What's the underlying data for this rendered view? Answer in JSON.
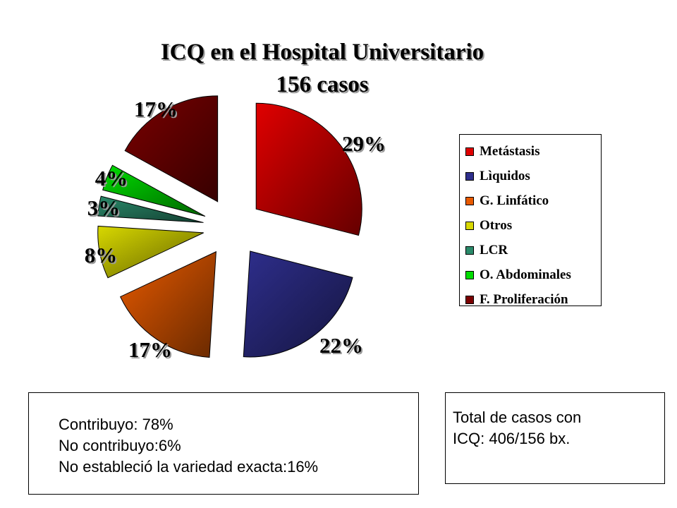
{
  "chart_data": {
    "type": "pie",
    "title": "ICQ en el Hospital Universitario",
    "subtitle": "156 casos",
    "categories": [
      "Metástasis",
      "Lìquidos",
      "G. Linfático",
      "Otros",
      "LCR",
      "O. Abdominales",
      "F. Proliferación"
    ],
    "values": [
      29,
      22,
      17,
      8,
      3,
      4,
      17
    ],
    "data_labels": [
      "29%",
      "22%",
      "17%",
      "8%",
      "3%",
      "4%",
      "17%"
    ],
    "colors": [
      "#e00000",
      "#2e2e8c",
      "#e85a00",
      "#d8d800",
      "#2a8a6a",
      "#00dd00",
      "#7a0000"
    ],
    "exploded": true,
    "legend": "right"
  },
  "notes_box": {
    "lines": [
      "Contribuyo: 78%",
      "No contribuyo:6%",
      "No estableció la variedad exacta:16%"
    ]
  },
  "total_box": {
    "lines": [
      "Total de casos con",
      "ICQ: 406/156 bx."
    ]
  }
}
